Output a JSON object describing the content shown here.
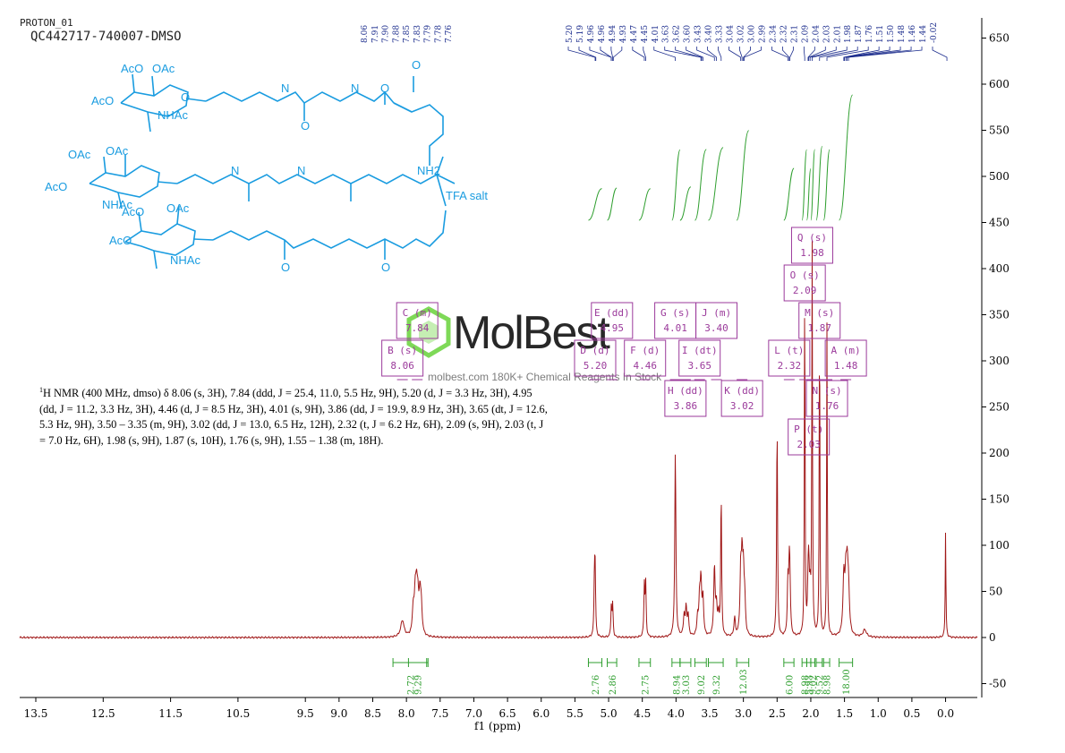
{
  "header": {
    "experiment": "PROTON_01",
    "sample": "QC442717-740007-DMSO"
  },
  "structure": {
    "salt_label": "TFA salt",
    "labels": [
      "AcO",
      "OAc",
      "OAc",
      "AcO",
      "OAc",
      "AcO",
      "AcO",
      "OAc",
      "NHAc",
      "NHAc",
      "NHAc",
      "NH2",
      "H",
      "O",
      "N"
    ]
  },
  "nmr_description": {
    "nucleus_sup": "1",
    "text": "H NMR (400 MHz, dmso) δ 8.06 (s, 3H), 7.84 (ddd, J = 25.4, 11.0, 5.5 Hz, 9H), 5.20 (d, J = 3.3 Hz, 3H), 4.95 (dd, J = 11.2, 3.3 Hz, 3H), 4.46 (d, J = 8.5 Hz, 3H), 4.01 (s, 9H), 3.86 (dd, J = 19.9, 8.9 Hz, 3H), 3.65 (dt, J = 12.6, 5.3 Hz, 9H), 3.50 – 3.35 (m, 9H), 3.02 (dd, J = 13.0, 6.5 Hz, 12H), 2.32 (t, J = 6.2 Hz, 6H), 2.09 (s, 9H), 2.03 (t, J = 7.0 Hz, 6H), 1.98 (s, 9H), 1.87 (s, 10H), 1.76 (s, 9H), 1.55 – 1.38 (m, 18H)."
  },
  "watermark": {
    "brand": "MolBest",
    "tagline": "molbest.com 180K+ Chemical Reagents In Stock"
  },
  "colors": {
    "spectrum": "#a01818",
    "integral": "#2e9e2e",
    "multiplet_box": "#9b3a9b",
    "peak_label": "#1a2b8c",
    "structure": "#1a9ce0",
    "watermark_green": "#7ed957",
    "axis": "#000000"
  },
  "chart_data": {
    "type": "line",
    "title": "",
    "xlabel": "f1 (ppm)",
    "ylabel": "",
    "xlim": [
      13.8,
      -0.7
    ],
    "ylim": [
      -65,
      665
    ],
    "x_reversed": true,
    "x_ticks": [
      13.5,
      12.5,
      11.5,
      10.5,
      9.5,
      9.0,
      8.5,
      8.0,
      7.5,
      7.0,
      6.5,
      6.0,
      5.5,
      5.0,
      4.5,
      4.0,
      3.5,
      3.0,
      2.5,
      2.0,
      1.5,
      1.0,
      0.5,
      0.0
    ],
    "x_tick_labels": [
      "13.5",
      "12.5",
      "11.5",
      "10.5",
      "9.5",
      "9.0",
      "8.5",
      "8.0",
      "7.5",
      "7.0",
      "6.5",
      "6.0",
      "5.5",
      "5.0",
      "4.5",
      "4.0",
      "3.5",
      "3.0",
      "2.5",
      "2.0",
      "1.5",
      "1.0",
      "0.5",
      "0.0"
    ],
    "y_ticks": [
      650,
      600,
      550,
      500,
      450,
      400,
      350,
      300,
      250,
      200,
      150,
      100,
      50,
      0,
      -50
    ],
    "y_axis_side": "right",
    "grid": false,
    "peaks": [
      {
        "ppm": 8.06,
        "height": 18,
        "width": 0.03
      },
      {
        "ppm": 7.9,
        "height": 28,
        "width": 0.015
      },
      {
        "ppm": 7.87,
        "height": 40,
        "width": 0.015
      },
      {
        "ppm": 7.85,
        "height": 42,
        "width": 0.015
      },
      {
        "ppm": 7.83,
        "height": 32,
        "width": 0.015
      },
      {
        "ppm": 7.8,
        "height": 40,
        "width": 0.015
      },
      {
        "ppm": 7.78,
        "height": 28,
        "width": 0.015
      },
      {
        "ppm": 5.21,
        "height": 62,
        "width": 0.008
      },
      {
        "ppm": 5.2,
        "height": 64,
        "width": 0.008
      },
      {
        "ppm": 4.96,
        "height": 33,
        "width": 0.008
      },
      {
        "ppm": 4.94,
        "height": 35,
        "width": 0.008
      },
      {
        "ppm": 4.47,
        "height": 55,
        "width": 0.008
      },
      {
        "ppm": 4.45,
        "height": 57,
        "width": 0.008
      },
      {
        "ppm": 4.01,
        "height": 200,
        "width": 0.01
      },
      {
        "ppm": 3.88,
        "height": 22,
        "width": 0.012
      },
      {
        "ppm": 3.85,
        "height": 30,
        "width": 0.012
      },
      {
        "ppm": 3.82,
        "height": 22,
        "width": 0.012
      },
      {
        "ppm": 3.68,
        "height": 20,
        "width": 0.012
      },
      {
        "ppm": 3.65,
        "height": 38,
        "width": 0.012
      },
      {
        "ppm": 3.63,
        "height": 56,
        "width": 0.012
      },
      {
        "ppm": 3.6,
        "height": 40,
        "width": 0.012
      },
      {
        "ppm": 3.43,
        "height": 75,
        "width": 0.012
      },
      {
        "ppm": 3.4,
        "height": 30,
        "width": 0.012
      },
      {
        "ppm": 3.37,
        "height": 20,
        "width": 0.012
      },
      {
        "ppm": 3.33,
        "height": 155,
        "width": 0.008
      },
      {
        "ppm": 3.13,
        "height": 20,
        "width": 0.012
      },
      {
        "ppm": 3.04,
        "height": 66,
        "width": 0.012
      },
      {
        "ppm": 3.02,
        "height": 72,
        "width": 0.012
      },
      {
        "ppm": 3.0,
        "height": 62,
        "width": 0.012
      },
      {
        "ppm": 2.98,
        "height": 34,
        "width": 0.012
      },
      {
        "ppm": 2.5,
        "height": 235,
        "width": 0.008
      },
      {
        "ppm": 2.34,
        "height": 55,
        "width": 0.01
      },
      {
        "ppm": 2.32,
        "height": 62,
        "width": 0.01
      },
      {
        "ppm": 2.31,
        "height": 48,
        "width": 0.01
      },
      {
        "ppm": 2.09,
        "height": 390,
        "width": 0.006
      },
      {
        "ppm": 2.04,
        "height": 42,
        "width": 0.01
      },
      {
        "ppm": 2.03,
        "height": 60,
        "width": 0.01
      },
      {
        "ppm": 2.01,
        "height": 40,
        "width": 0.01
      },
      {
        "ppm": 1.98,
        "height": 425,
        "width": 0.006
      },
      {
        "ppm": 1.87,
        "height": 360,
        "width": 0.006
      },
      {
        "ppm": 1.76,
        "height": 340,
        "width": 0.006
      },
      {
        "ppm": 1.51,
        "height": 60,
        "width": 0.015
      },
      {
        "ppm": 1.48,
        "height": 54,
        "width": 0.015
      },
      {
        "ppm": 1.46,
        "height": 58,
        "width": 0.015
      },
      {
        "ppm": 1.44,
        "height": 44,
        "width": 0.015
      },
      {
        "ppm": 1.2,
        "height": 8,
        "width": 0.03
      },
      {
        "ppm": 0.0,
        "height": 115,
        "width": 0.006
      }
    ],
    "peak_labels": [
      "8.06",
      "7.91",
      "7.90",
      "7.88",
      "7.85",
      "7.83",
      "7.79",
      "7.78",
      "7.76",
      "5.20",
      "5.19",
      "4.96",
      "4.96",
      "4.94",
      "4.93",
      "4.47",
      "4.45",
      "4.01",
      "3.63",
      "3.62",
      "3.60",
      "3.43",
      "3.40",
      "3.33",
      "3.04",
      "3.02",
      "3.00",
      "2.99",
      "2.34",
      "2.32",
      "2.31",
      "2.09",
      "2.04",
      "2.03",
      "2.01",
      "1.98",
      "1.87",
      "1.76",
      "1.51",
      "1.50",
      "1.48",
      "1.46",
      "1.44",
      "-0.02"
    ],
    "peak_label_positions_ppm": [
      8.06,
      7.91,
      7.9,
      7.88,
      7.85,
      7.83,
      7.79,
      7.78,
      7.76,
      5.2,
      5.19,
      4.96,
      4.96,
      4.94,
      4.93,
      4.47,
      4.45,
      4.01,
      3.63,
      3.62,
      3.6,
      3.43,
      3.4,
      3.33,
      3.04,
      3.02,
      3.0,
      2.99,
      2.34,
      2.32,
      2.31,
      2.09,
      2.04,
      2.03,
      2.01,
      1.98,
      1.87,
      1.76,
      1.51,
      1.5,
      1.48,
      1.46,
      1.44,
      -0.02
    ],
    "integrals": [
      {
        "from": 8.2,
        "to": 7.68,
        "value": "2.72"
      },
      {
        "from": 7.97,
        "to": 7.7,
        "value": "9.29"
      },
      {
        "from": 5.3,
        "to": 5.1,
        "value": "2.76"
      },
      {
        "from": 5.02,
        "to": 4.88,
        "value": "2.86"
      },
      {
        "from": 4.55,
        "to": 4.38,
        "value": "2.75"
      },
      {
        "from": 4.06,
        "to": 3.94,
        "value": "8.94"
      },
      {
        "from": 3.94,
        "to": 3.78,
        "value": "3.03"
      },
      {
        "from": 3.72,
        "to": 3.55,
        "value": "9.02"
      },
      {
        "from": 3.52,
        "to": 3.3,
        "value": "9.32"
      },
      {
        "from": 3.1,
        "to": 2.92,
        "value": "12.03"
      },
      {
        "from": 2.4,
        "to": 2.25,
        "value": "6.00"
      },
      {
        "from": 2.13,
        "to": 2.06,
        "value": "8.98"
      },
      {
        "from": 2.06,
        "to": 2.0,
        "value": "5.93"
      },
      {
        "from": 2.0,
        "to": 1.94,
        "value": "9.02"
      },
      {
        "from": 1.92,
        "to": 1.83,
        "value": "9.52"
      },
      {
        "from": 1.81,
        "to": 1.72,
        "value": "8.98"
      },
      {
        "from": 1.58,
        "to": 1.38,
        "value": "18.00"
      }
    ],
    "multiplets": [
      {
        "id": "C",
        "mult": "(m)",
        "shift": "7.84",
        "ppm": 7.84,
        "row": 1
      },
      {
        "id": "B",
        "mult": "(s)",
        "shift": "8.06",
        "ppm": 8.06,
        "row": 2
      },
      {
        "id": "E",
        "mult": "(dd)",
        "shift": "4.95",
        "ppm": 4.95,
        "row": 1
      },
      {
        "id": "D",
        "mult": "(d)",
        "shift": "5.20",
        "ppm": 5.2,
        "row": 2
      },
      {
        "id": "F",
        "mult": "(d)",
        "shift": "4.46",
        "ppm": 4.46,
        "row": 2
      },
      {
        "id": "G",
        "mult": "(s)",
        "shift": "4.01",
        "ppm": 4.01,
        "row": 1
      },
      {
        "id": "J",
        "mult": "(m)",
        "shift": "3.40",
        "ppm": 3.4,
        "row": 1
      },
      {
        "id": "I",
        "mult": "(dt)",
        "shift": "3.65",
        "ppm": 3.65,
        "row": 2
      },
      {
        "id": "H",
        "mult": "(dd)",
        "shift": "3.86",
        "ppm": 3.86,
        "row": 3
      },
      {
        "id": "K",
        "mult": "(dd)",
        "shift": "3.02",
        "ppm": 3.02,
        "row": 3
      },
      {
        "id": "L",
        "mult": "(t)",
        "shift": "2.32",
        "ppm": 2.32,
        "row": 2
      },
      {
        "id": "Q",
        "mult": "(s)",
        "shift": "1.98",
        "ppm": 1.98,
        "row": -2
      },
      {
        "id": "O",
        "mult": "(s)",
        "shift": "2.09",
        "ppm": 2.09,
        "row": -1
      },
      {
        "id": "M",
        "mult": "(s)",
        "shift": "1.87",
        "ppm": 1.87,
        "row": 1
      },
      {
        "id": "A",
        "mult": "(m)",
        "shift": "1.48",
        "ppm": 1.48,
        "row": 2
      },
      {
        "id": "N",
        "mult": "(s)",
        "shift": "1.76",
        "ppm": 1.76,
        "row": 3
      },
      {
        "id": "P",
        "mult": "(t)",
        "shift": "2.03",
        "ppm": 2.03,
        "row": 4
      }
    ]
  }
}
